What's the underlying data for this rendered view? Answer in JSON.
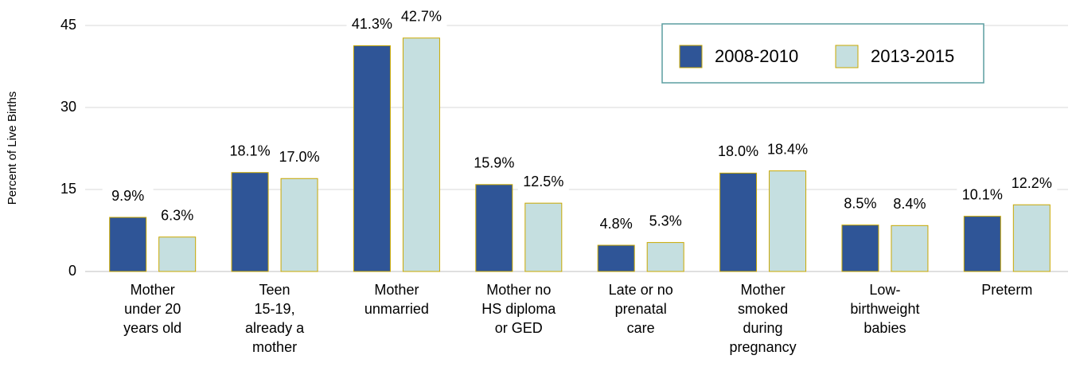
{
  "chart_data": {
    "type": "bar",
    "y_label": "Percent of Live Births",
    "categories": [
      "Mother\nunder 20\nyears old",
      "Teen\n15-19,\nalready a\nmother",
      "Mother\nunmarried",
      "Mother no\nHS diploma\nor GED",
      "Late or no\nprenatal\ncare",
      "Mother\nsmoked\nduring\npregnancy",
      "Low-\nbirthweight\nbabies",
      "Preterm"
    ],
    "series": [
      {
        "name": "2008-2010",
        "color": "#2f5597",
        "values": [
          9.9,
          18.1,
          41.3,
          15.9,
          4.8,
          18.0,
          8.5,
          10.1
        ],
        "value_labels": [
          "9.9%",
          "18.1%",
          "41.3%",
          "15.9%",
          "4.8%",
          "18.0%",
          "8.5%",
          "10.1%"
        ]
      },
      {
        "name": "2013-2015",
        "color": "#c5dfe0",
        "values": [
          6.3,
          17.0,
          42.7,
          12.5,
          5.3,
          18.4,
          8.4,
          12.2
        ],
        "value_labels": [
          "6.3%",
          "17.0%",
          "42.7%",
          "12.5%",
          "5.3%",
          "18.4%",
          "8.4%",
          "12.2%"
        ]
      }
    ],
    "ylim": [
      0,
      45
    ],
    "yticks": [
      0,
      15,
      30,
      45
    ],
    "grid": true,
    "legend": "top-right"
  }
}
